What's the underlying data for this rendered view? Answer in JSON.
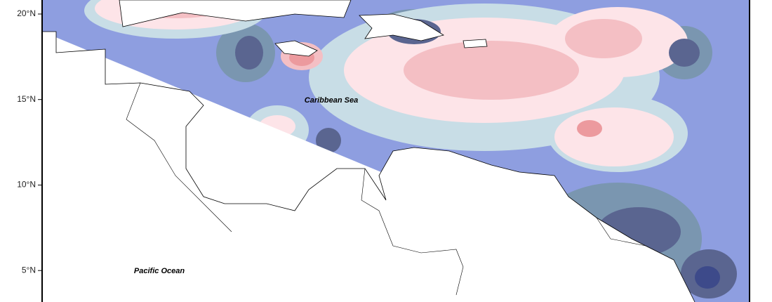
{
  "map": {
    "ylim": [
      3.16,
      20.82
    ],
    "yticks": [
      {
        "value": 5,
        "label": "5°N"
      },
      {
        "value": 10,
        "label": "10°N"
      },
      {
        "value": 15,
        "label": "15°N"
      },
      {
        "value": 20,
        "label": "20°N"
      }
    ],
    "labels": [
      "Caribbean Sea",
      "Pacific Ocean"
    ]
  }
}
